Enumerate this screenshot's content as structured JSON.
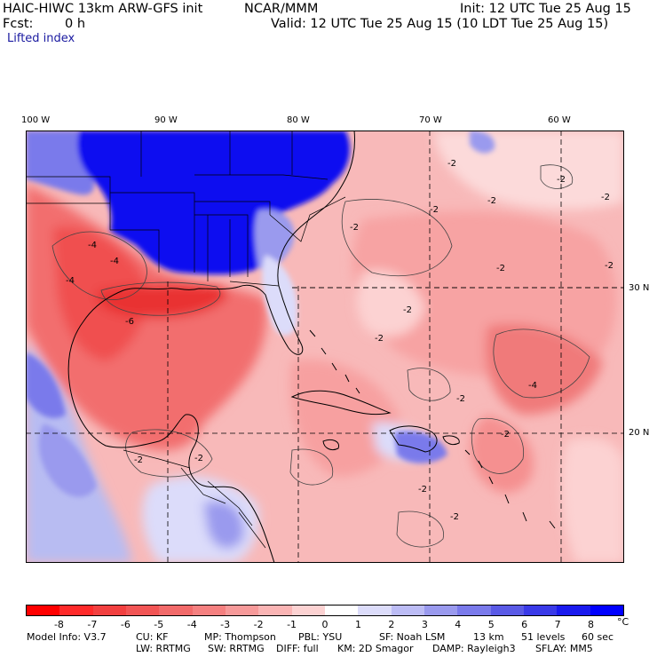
{
  "header": {
    "model_title": "HAIC-HIWC 13km ARW-GFS init",
    "org": "NCAR/MMM",
    "init": "Init: 12 UTC Tue 25 Aug 15",
    "fcst_label": "Fcst:",
    "fcst_value": "0 h",
    "valid": "Valid: 12 UTC Tue 25 Aug 15 (10 LDT Tue 25 Aug 15)",
    "field": "Lifted index"
  },
  "axes": {
    "lon_labels": [
      "100 W",
      "90 W",
      "80 W",
      "70 W",
      "60 W"
    ],
    "lat_labels": [
      "30 N",
      "20 N"
    ]
  },
  "colorbar": {
    "ticks": [
      "-8",
      "-7",
      "-6",
      "-5",
      "-4",
      "-3",
      "-2",
      "-1",
      "0",
      "1",
      "2",
      "3",
      "4",
      "5",
      "6",
      "7",
      "8"
    ],
    "unit": "°C",
    "colors": [
      "#ff0000",
      "#ff2a2a",
      "#f24040",
      "#f25555",
      "#f26a6a",
      "#f58080",
      "#f79a9a",
      "#fab4b4",
      "#fcd2d2",
      "#ffffff",
      "#dcdcfa",
      "#bcbcf5",
      "#9a9aee",
      "#7a7aeb",
      "#5a5ae6",
      "#3a3ae8",
      "#1a1aee",
      "#0000ff"
    ]
  },
  "model_info": {
    "line1": {
      "model": "Model Info: V3.7",
      "cu": "CU: KF",
      "mp": "MP: Thompson",
      "pbl": "PBL: YSU",
      "sf": "SF: Noah LSM",
      "res": "13 km",
      "levels": "51 levels",
      "dt": "60 sec"
    },
    "line2": {
      "lw": "LW: RRTMG",
      "sw": "SW: RRTMG",
      "diff": "DIFF: full",
      "km": "KM: 2D Smagor",
      "damp": "DAMP: Rayleigh3",
      "sflay": "SFLAY: MM5"
    }
  },
  "contour_labels": [
    "-2",
    "-2",
    "-2",
    "-2",
    "-2",
    "-2",
    "-2",
    "-2",
    "-4",
    "-4",
    "-4",
    "-6",
    "-2",
    "-2",
    "-2",
    "-2",
    "-2",
    "-2",
    "-4",
    "-2",
    "-2"
  ]
}
